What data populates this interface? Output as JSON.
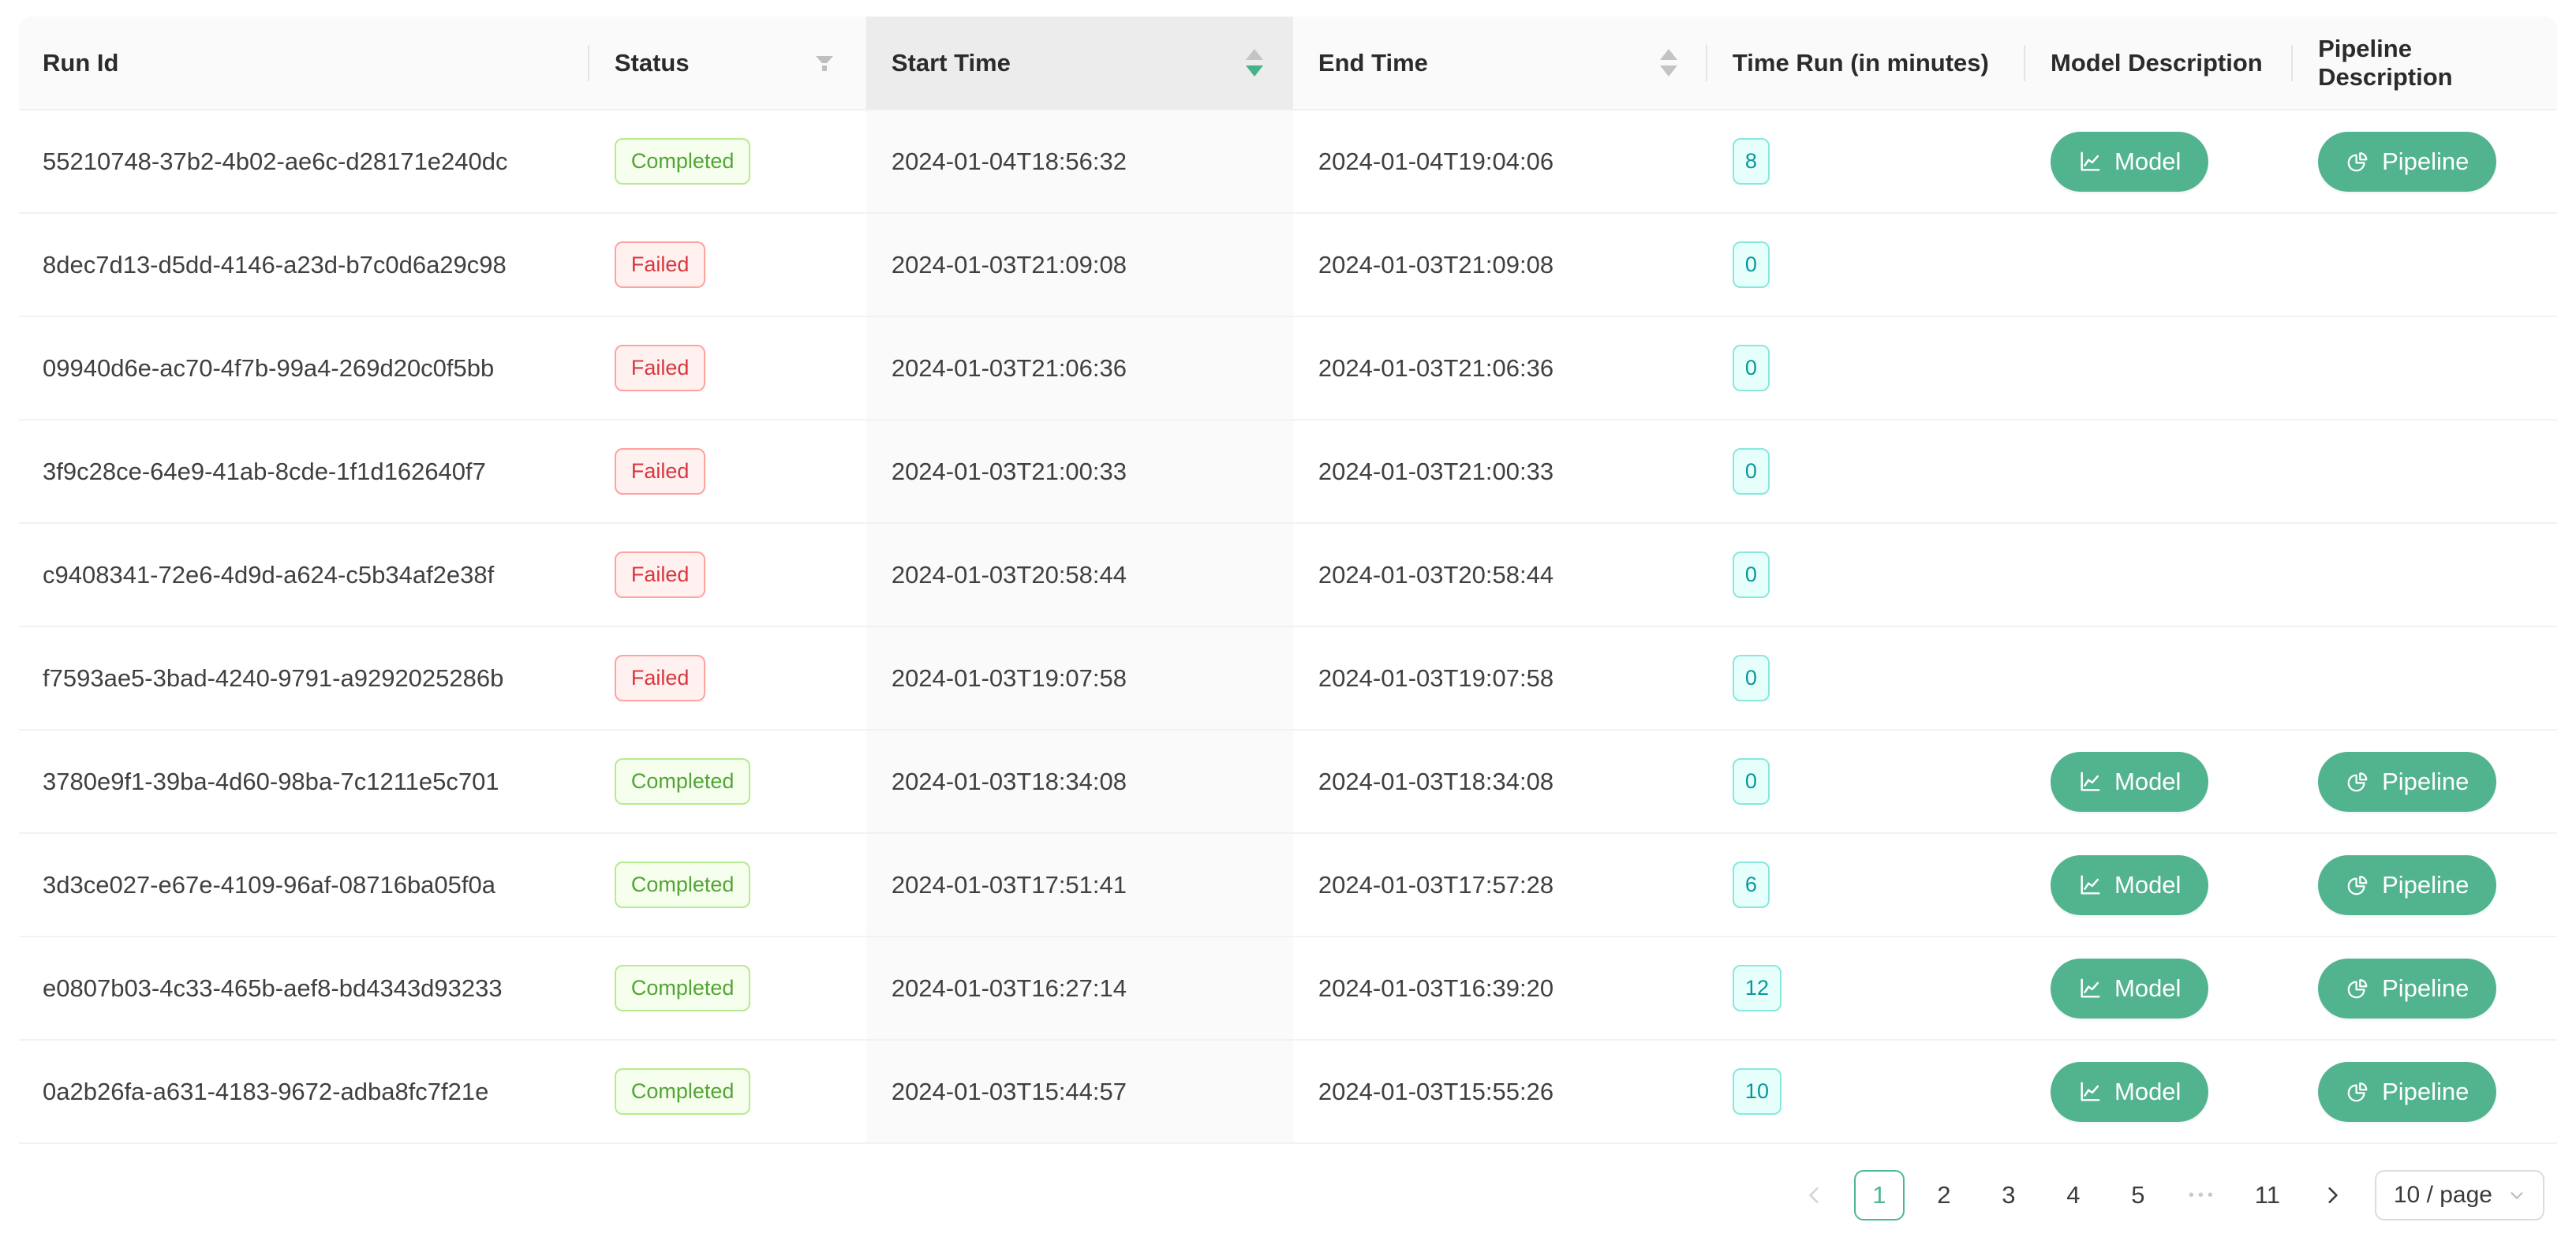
{
  "table": {
    "columns": [
      {
        "label": "Run Id"
      },
      {
        "label": "Status"
      },
      {
        "label": "Start Time",
        "sorted": "descend"
      },
      {
        "label": "End Time"
      },
      {
        "label": "Time Run (in minutes)"
      },
      {
        "label": "Model Description"
      },
      {
        "label": "Pipeline Description"
      }
    ],
    "rows": [
      {
        "run_id": "55210748-37b2-4b02-ae6c-d28171e240dc",
        "status": "Completed",
        "status_variant": "green",
        "start_time": "2024-01-04T18:56:32",
        "end_time": "2024-01-04T19:04:06",
        "minutes": 8
      },
      {
        "run_id": "8dec7d13-d5dd-4146-a23d-b7c0d6a29c98",
        "status": "Failed",
        "status_variant": "red",
        "start_time": "2024-01-03T21:09:08",
        "end_time": "2024-01-03T21:09:08",
        "minutes": 0
      },
      {
        "run_id": "09940d6e-ac70-4f7b-99a4-269d20c0f5bb",
        "status": "Failed",
        "status_variant": "red",
        "start_time": "2024-01-03T21:06:36",
        "end_time": "2024-01-03T21:06:36",
        "minutes": 0
      },
      {
        "run_id": "3f9c28ce-64e9-41ab-8cde-1f1d162640f7",
        "status": "Failed",
        "status_variant": "red",
        "start_time": "2024-01-03T21:00:33",
        "end_time": "2024-01-03T21:00:33",
        "minutes": 0
      },
      {
        "run_id": "c9408341-72e6-4d9d-a624-c5b34af2e38f",
        "status": "Failed",
        "status_variant": "red",
        "start_time": "2024-01-03T20:58:44",
        "end_time": "2024-01-03T20:58:44",
        "minutes": 0
      },
      {
        "run_id": "f7593ae5-3bad-4240-9791-a9292025286b",
        "status": "Failed",
        "status_variant": "red",
        "start_time": "2024-01-03T19:07:58",
        "end_time": "2024-01-03T19:07:58",
        "minutes": 0
      },
      {
        "run_id": "3780e9f1-39ba-4d60-98ba-7c1211e5c701",
        "status": "Completed",
        "status_variant": "green",
        "start_time": "2024-01-03T18:34:08",
        "end_time": "2024-01-03T18:34:08",
        "minutes": 0
      },
      {
        "run_id": "3d3ce027-e67e-4109-96af-08716ba05f0a",
        "status": "Completed",
        "status_variant": "green",
        "start_time": "2024-01-03T17:51:41",
        "end_time": "2024-01-03T17:57:28",
        "minutes": 6
      },
      {
        "run_id": "e0807b03-4c33-465b-aef8-bd4343d93233",
        "status": "Completed",
        "status_variant": "green",
        "start_time": "2024-01-03T16:27:14",
        "end_time": "2024-01-03T16:39:20",
        "minutes": 12
      },
      {
        "run_id": "0a2b26fa-a631-4183-9672-adba8fc7f21e",
        "status": "Completed",
        "status_variant": "green",
        "start_time": "2024-01-03T15:44:57",
        "end_time": "2024-01-03T15:55:26",
        "minutes": 10
      }
    ]
  },
  "actions": {
    "model_label": "Model",
    "pipeline_label": "Pipeline"
  },
  "icons": {
    "status_filter": "filter-funnel",
    "sorter": "caret-up-down",
    "model_button": "line-chart",
    "pipeline_button": "pie-chart",
    "pagination_prev": "chevron-left",
    "pagination_next": "chevron-right",
    "page_size_caret": "chevron-down"
  },
  "pagination": {
    "pages": [
      "1",
      "2",
      "3",
      "4",
      "5"
    ],
    "ellipsis": "•••",
    "last_page": "11",
    "active_page": "1",
    "page_size_label": "10 / page"
  },
  "colors": {
    "accent_green": "#52b48e",
    "sort_active_caret": "#44b38a",
    "pagination_active": "#4bb890",
    "tag_green_text": "#52a434",
    "tag_green_bg": "#f6ffed",
    "tag_green_border": "#b7eb8f",
    "tag_red_text": "#d9363e",
    "tag_red_bg": "#fff1f0",
    "tag_red_border": "#ffa39e",
    "tag_cyan_text": "#08979c",
    "tag_cyan_bg": "#e6fffb",
    "tag_cyan_border": "#87e8de",
    "header_bg": "#fafafa",
    "sorted_header_bg": "#ececec",
    "sorted_col_bg": "#fafafa"
  }
}
